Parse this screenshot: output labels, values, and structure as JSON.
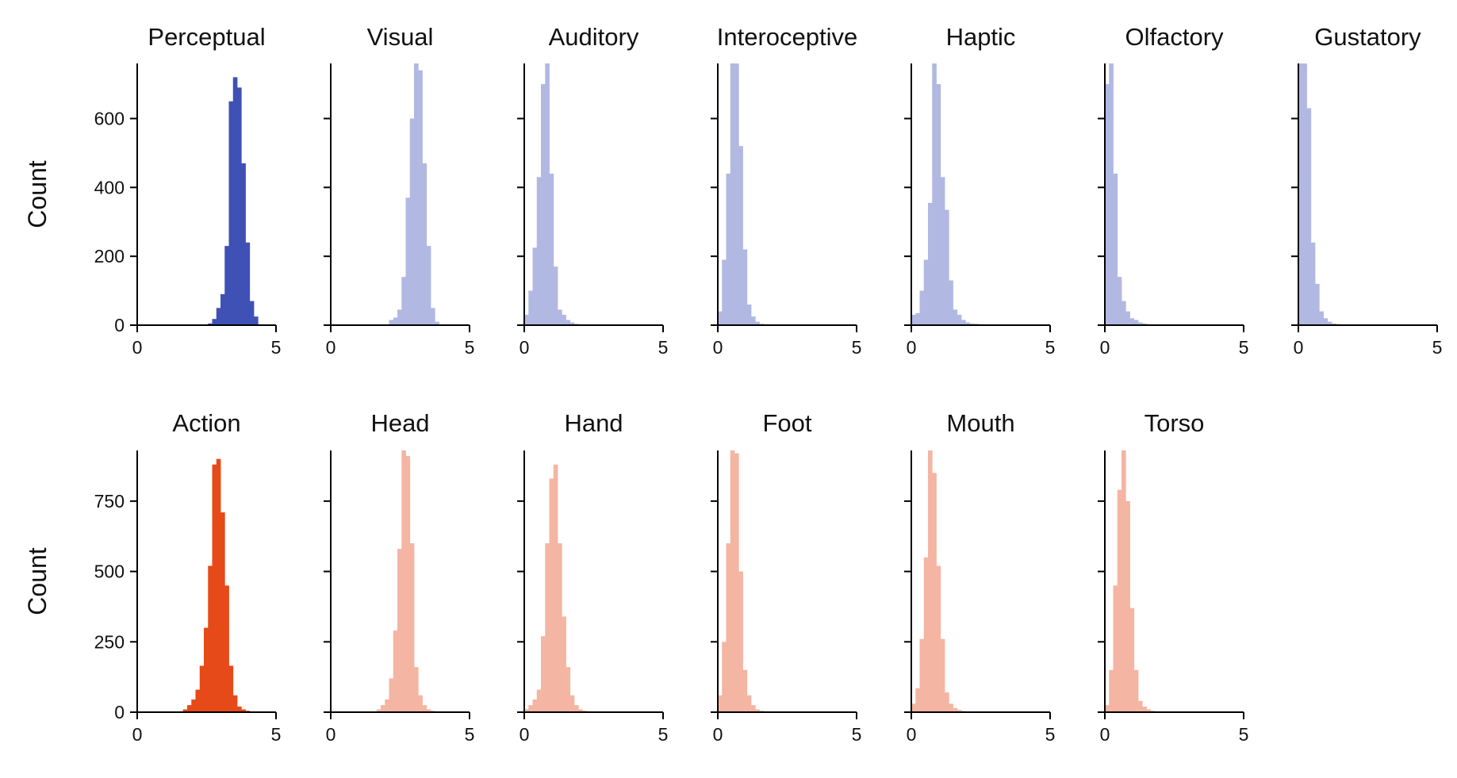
{
  "chart_data": {
    "type": "bar",
    "xlim": [
      0,
      5
    ],
    "xticks": [
      "0",
      "5"
    ],
    "grid": false,
    "rows": [
      {
        "ylabel": "Count",
        "ylim": [
          0,
          760
        ],
        "yticks": [
          "0",
          "200",
          "400",
          "600"
        ],
        "bin_width": 0.15,
        "panels": [
          {
            "title": "Perceptual",
            "color": "#3f51b5",
            "bin_start": 2.55,
            "counts": [
              5,
              18,
              50,
              90,
              230,
              650,
              720,
              690,
              470,
              240,
              70,
              25
            ]
          },
          {
            "title": "Visual",
            "color": "#b1b8e2",
            "bin_start": 2.1,
            "counts": [
              15,
              22,
              45,
              140,
              370,
              600,
              760,
              740,
              470,
              230,
              50,
              10
            ]
          },
          {
            "title": "Auditory",
            "color": "#b1b8e2",
            "bin_start": 0.0,
            "counts": [
              30,
              100,
              225,
              430,
              700,
              760,
              440,
              170,
              45,
              30,
              15,
              8,
              4,
              2
            ]
          },
          {
            "title": "Interoceptive",
            "color": "#b1b8e2",
            "bin_start": 0.0,
            "counts": [
              40,
              190,
              440,
              760,
              760,
              520,
              220,
              60,
              25,
              10,
              4,
              2
            ]
          },
          {
            "title": "Haptic",
            "color": "#b1b8e2",
            "bin_start": 0.0,
            "counts": [
              30,
              35,
              100,
              190,
              355,
              760,
              700,
              430,
              335,
              130,
              45,
              30,
              15,
              8,
              5,
              4,
              3,
              2,
              1
            ]
          },
          {
            "title": "Olfactory",
            "color": "#b1b8e2",
            "bin_start": 0.0,
            "counts": [
              700,
              760,
              440,
              140,
              70,
              40,
              20,
              15,
              8,
              5,
              3,
              2,
              2,
              1,
              1
            ]
          },
          {
            "title": "Gustatory",
            "color": "#b1b8e2",
            "bin_start": 0.0,
            "counts": [
              760,
              760,
              630,
              240,
              120,
              40,
              20,
              10,
              5,
              3,
              2
            ]
          }
        ]
      },
      {
        "ylabel": "Count",
        "ylim": [
          0,
          930
        ],
        "yticks": [
          "0",
          "250",
          "500",
          "750"
        ],
        "bin_width": 0.15,
        "panels": [
          {
            "title": "Action",
            "color": "#e64a19",
            "bin_start": 1.5,
            "counts": [
              3,
              10,
              25,
              45,
              80,
              165,
              300,
              520,
              880,
              900,
              710,
              450,
              165,
              60,
              20,
              10,
              5,
              3
            ]
          },
          {
            "title": "Head",
            "color": "#f4b5a3",
            "bin_start": 1.5,
            "counts": [
              3,
              10,
              25,
              45,
              120,
              290,
              580,
              930,
              910,
              600,
              160,
              60,
              25,
              10,
              5
            ]
          },
          {
            "title": "Hand",
            "color": "#f4b5a3",
            "bin_start": 0.0,
            "counts": [
              10,
              25,
              45,
              80,
              270,
              600,
              830,
              880,
              600,
              340,
              160,
              60,
              25,
              10,
              5,
              3,
              2
            ]
          },
          {
            "title": "Foot",
            "color": "#f4b5a3",
            "bin_start": 0.0,
            "counts": [
              60,
              250,
              600,
              930,
              920,
              500,
              150,
              60,
              25,
              10,
              5
            ]
          },
          {
            "title": "Mouth",
            "color": "#f4b5a3",
            "bin_start": 0.0,
            "counts": [
              30,
              85,
              260,
              550,
              930,
              850,
              520,
              260,
              70,
              30,
              15,
              8,
              4,
              2
            ]
          },
          {
            "title": "Torso",
            "color": "#f4b5a3",
            "bin_start": 0.0,
            "counts": [
              25,
              150,
              450,
              790,
              930,
              750,
              370,
              150,
              40,
              20,
              10,
              5,
              2
            ]
          }
        ]
      }
    ]
  }
}
